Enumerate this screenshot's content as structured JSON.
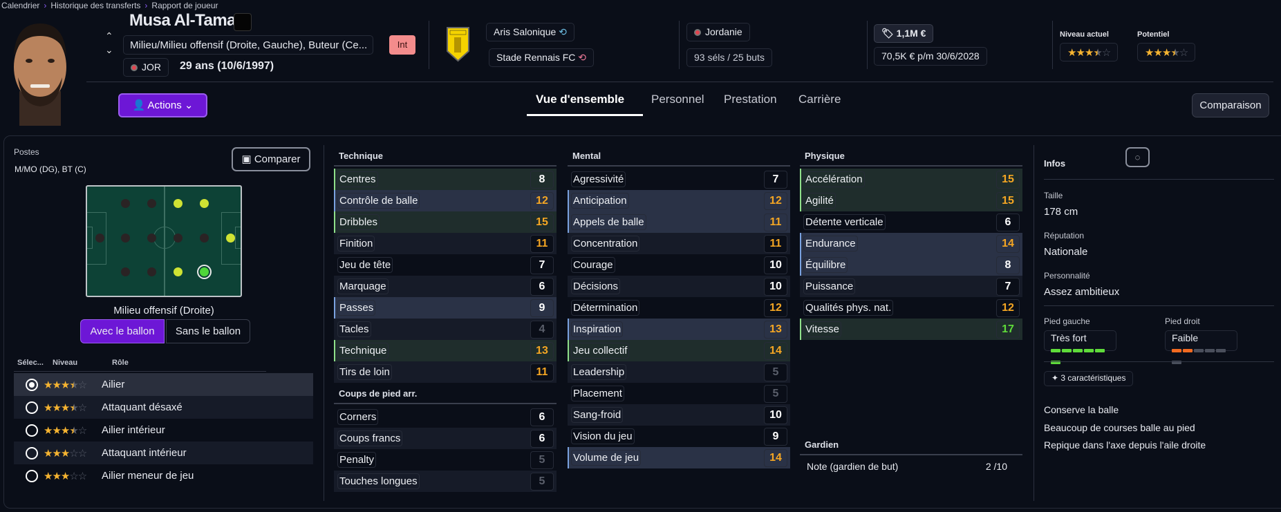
{
  "breadcrumb": [
    "Calendrier",
    "Historique des transferts",
    "Rapport de joueur"
  ],
  "player": {
    "name": "Musa Al-Tamari",
    "positions": "Milieu/Milieu offensif (Droite, Gauche), Buteur (Ce...",
    "status_badge": "Int",
    "nationality_code": "JOR",
    "age": "29 ans (10/6/1997)"
  },
  "club": {
    "current": "Aris Salonique",
    "parent": "Stade Rennais FC"
  },
  "national": {
    "country": "Jordanie",
    "caps": "93 séls / 25 buts"
  },
  "contract": {
    "value": "1,1M €",
    "wage": "70,5K € p/m",
    "expires": "30/6/2028"
  },
  "ability": {
    "current_label": "Niveau actuel",
    "potential_label": "Potentiel",
    "current_stars": 3.5,
    "potential_stars": 3.5
  },
  "actions_label": "Actions",
  "tabs": [
    "Vue d'ensemble",
    "Personnel",
    "Prestation",
    "Carrière"
  ],
  "active_tab": "Vue d'ensemble",
  "comparison_label": "Comparaison",
  "left": {
    "postes_label": "Postes",
    "postes_value": "M/MO (DG), BT (C)",
    "compare_label": "Comparer",
    "pitch_selected": "Milieu offensif (Droite)",
    "pitch_states": {
      "top": [
        "no",
        "no",
        "ok",
        "ok"
      ],
      "mid": [
        "no",
        "no",
        "no",
        "no",
        "no",
        "ok"
      ],
      "bot": [
        "no",
        "no",
        "ok",
        "sel"
      ]
    },
    "toggle": [
      "Avec le ballon",
      "Sans le ballon"
    ],
    "role_headers": [
      "Sélec...",
      "Niveau",
      "Rôle"
    ],
    "roles": [
      {
        "name": "Ailier",
        "stars": 3.5,
        "selected": true
      },
      {
        "name": "Attaquant désaxé",
        "stars": 3.5,
        "selected": false
      },
      {
        "name": "Ailier intérieur",
        "stars": 3.5,
        "selected": false
      },
      {
        "name": "Attaquant intérieur",
        "stars": 3,
        "selected": false
      },
      {
        "name": "Ailier meneur de jeu",
        "stars": 3,
        "selected": false
      }
    ]
  },
  "attributes": {
    "technique": {
      "title": "Technique",
      "rows": [
        [
          "Centres",
          8,
          "green"
        ],
        [
          "Contrôle de balle",
          12,
          "blue"
        ],
        [
          "Dribbles",
          15,
          "green"
        ],
        [
          "Finition",
          11,
          ""
        ],
        [
          "Jeu de tête",
          7,
          ""
        ],
        [
          "Marquage",
          6,
          ""
        ],
        [
          "Passes",
          9,
          "blue"
        ],
        [
          "Tacles",
          4,
          ""
        ],
        [
          "Technique",
          13,
          "green"
        ],
        [
          "Tirs de loin",
          11,
          ""
        ]
      ]
    },
    "set_pieces": {
      "title": "Coups de pied arr.",
      "rows": [
        [
          "Corners",
          6,
          ""
        ],
        [
          "Coups francs",
          6,
          ""
        ],
        [
          "Penalty",
          5,
          ""
        ],
        [
          "Touches longues",
          5,
          ""
        ]
      ]
    },
    "mental": {
      "title": "Mental",
      "rows": [
        [
          "Agressivité",
          7,
          ""
        ],
        [
          "Anticipation",
          12,
          "blue"
        ],
        [
          "Appels de balle",
          11,
          "blue"
        ],
        [
          "Concentration",
          11,
          ""
        ],
        [
          "Courage",
          10,
          ""
        ],
        [
          "Décisions",
          10,
          ""
        ],
        [
          "Détermination",
          12,
          ""
        ],
        [
          "Inspiration",
          13,
          "blue"
        ],
        [
          "Jeu collectif",
          14,
          "green"
        ],
        [
          "Leadership",
          5,
          ""
        ],
        [
          "Placement",
          5,
          ""
        ],
        [
          "Sang-froid",
          10,
          ""
        ],
        [
          "Vision du jeu",
          9,
          ""
        ],
        [
          "Volume de jeu",
          14,
          "blue"
        ]
      ]
    },
    "physique": {
      "title": "Physique",
      "rows": [
        [
          "Accélération",
          15,
          "green"
        ],
        [
          "Agilité",
          15,
          "green"
        ],
        [
          "Détente verticale",
          6,
          ""
        ],
        [
          "Endurance",
          14,
          "blue"
        ],
        [
          "Équilibre",
          8,
          "blue"
        ],
        [
          "Puissance",
          7,
          ""
        ],
        [
          "Qualités phys. nat.",
          12,
          ""
        ],
        [
          "Vitesse",
          17,
          "green"
        ]
      ]
    },
    "goalkeeper": {
      "title": "Gardien",
      "label": "Note (gardien de but)",
      "value": "2 /10"
    }
  },
  "infos": {
    "title": "Infos",
    "height_label": "Taille",
    "height": "178 cm",
    "reputation_label": "Réputation",
    "reputation": "Nationale",
    "personality_label": "Personnalité",
    "personality": "Assez ambitieux",
    "left_foot_label": "Pied gauche",
    "left_foot": "Très fort",
    "left_foot_level": 6,
    "right_foot_label": "Pied droit",
    "right_foot": "Faible",
    "right_foot_level": 2,
    "traits_label": "3 caractéristiques",
    "traits": [
      "Conserve la balle",
      "Beaucoup de courses balle au pied",
      "Repique dans l'axe depuis l'aile droite"
    ]
  },
  "colors": {
    "accent": "#6d17d6",
    "good": "#f5a623",
    "great": "#5fdc3a",
    "low": "#5a5f6b",
    "foot_strong": "#5fdc3a",
    "foot_weak": "#f26a21"
  }
}
